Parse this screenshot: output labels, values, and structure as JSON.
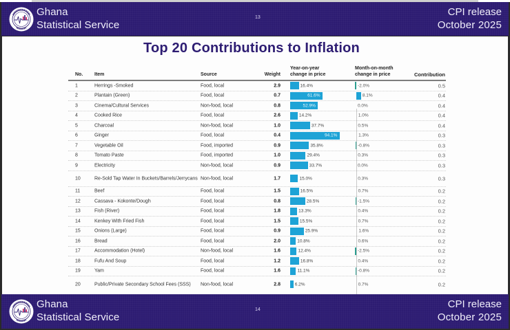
{
  "header": {
    "org_line1": "Ghana",
    "org_line2": "Statistical Service",
    "logo": "ghana-statistical-service-logo",
    "release_line1": "CPI release",
    "release_line2": "October  2025"
  },
  "top_page_number": "13",
  "bottom_page_number": "14",
  "page": {
    "title": "Top 20 Contributions to Inflation"
  },
  "colors": {
    "brand_purple": "#2d1c72",
    "yoy_bar": "#1ea3d6",
    "mom_positive": "#1ea3d6",
    "mom_negative": "#2a9d8f"
  },
  "table": {
    "columns": {
      "no": "No.",
      "item": "Item",
      "source": "Source",
      "weight": "Weight",
      "yoy_line1": "Year-on-year",
      "yoy_line2": "change in price",
      "mom_line1": "Month-on-month",
      "mom_line2": "change in price",
      "contribution": "Contribution"
    },
    "rows": [
      {
        "no": "1",
        "item": "Herrings -Smoked",
        "source": "Food, local",
        "weight": "2.9",
        "yoy": 16.4,
        "yoy_label": "16.4%",
        "mom": -2.0,
        "mom_label": "-2.0%",
        "contribution": "0.5"
      },
      {
        "no": "2",
        "item": "Plantain (Green)",
        "source": "Food, local",
        "weight": "0.7",
        "yoy": 61.6,
        "yoy_label": "61.6%",
        "mom": 8.1,
        "mom_label": "8.1%",
        "contribution": "0.4"
      },
      {
        "no": "3",
        "item": "Cinema/Cultural Services",
        "source": "Non-food, local",
        "weight": "0.8",
        "yoy": 52.9,
        "yoy_label": "52.9%",
        "mom": 0.0,
        "mom_label": "0.0%",
        "contribution": "0.4"
      },
      {
        "no": "4",
        "item": "Cooked Rice",
        "source": "Food, local",
        "weight": "2.6",
        "yoy": 14.2,
        "yoy_label": "14.2%",
        "mom": 1.0,
        "mom_label": "1.0%",
        "contribution": "0.4"
      },
      {
        "no": "5",
        "item": "Charcoal",
        "source": "Non-food, local",
        "weight": "1.0",
        "yoy": 37.7,
        "yoy_label": "37.7%",
        "mom": 0.5,
        "mom_label": "0.5%",
        "contribution": "0.4"
      },
      {
        "no": "6",
        "item": "Ginger",
        "source": "Food, local",
        "weight": "0.4",
        "yoy": 94.1,
        "yoy_label": "94.1%",
        "mom": 1.3,
        "mom_label": "1.3%",
        "contribution": "0.3"
      },
      {
        "no": "7",
        "item": "Vegetable Oil",
        "source": "Food, imported",
        "weight": "0.9",
        "yoy": 35.8,
        "yoy_label": "35.8%",
        "mom": -0.8,
        "mom_label": "-0.8%",
        "contribution": "0.3"
      },
      {
        "no": "8",
        "item": "Tomato Paste",
        "source": "Food, imported",
        "weight": "1.0",
        "yoy": 29.4,
        "yoy_label": "29.4%",
        "mom": 0.3,
        "mom_label": "0.3%",
        "contribution": "0.3"
      },
      {
        "no": "9",
        "item": "Electricity",
        "source": "Non-food, local",
        "weight": "0.9",
        "yoy": 33.7,
        "yoy_label": "33.7%",
        "mom": 0.0,
        "mom_label": "0.0%",
        "contribution": "0.3"
      },
      {
        "no": "10",
        "item": "Re-Sold Tap Water In Buckets/Barrels/Jerrycans",
        "source": "Non-food, local",
        "weight": "1.7",
        "yoy": 15.0,
        "yoy_label": "15.0%",
        "mom": 0.3,
        "mom_label": "0.3%",
        "contribution": "0.3",
        "tall": true
      },
      {
        "no": "11",
        "item": "Beef",
        "source": "Food, local",
        "weight": "1.5",
        "yoy": 16.5,
        "yoy_label": "16.5%",
        "mom": 0.7,
        "mom_label": "0.7%",
        "contribution": "0.2"
      },
      {
        "no": "12",
        "item": "Cassava - Kokonte/Dough",
        "source": "Food, local",
        "weight": "0.8",
        "yoy": 28.5,
        "yoy_label": "28.5%",
        "mom": -1.5,
        "mom_label": "-1.5%",
        "contribution": "0.2"
      },
      {
        "no": "13",
        "item": "Fish (River)",
        "source": "Food, local",
        "weight": "1.8",
        "yoy": 13.3,
        "yoy_label": "13.3%",
        "mom": 0.4,
        "mom_label": "0.4%",
        "contribution": "0.2"
      },
      {
        "no": "14",
        "item": "Kenkey With Fried Fish",
        "source": "Food, local",
        "weight": "1.5",
        "yoy": 15.5,
        "yoy_label": "15.5%",
        "mom": 0.7,
        "mom_label": "0.7%",
        "contribution": "0.2"
      },
      {
        "no": "15",
        "item": "Onions (Large)",
        "source": "Food, local",
        "weight": "0.9",
        "yoy": 25.9,
        "yoy_label": "25.9%",
        "mom": 1.6,
        "mom_label": "1.6%",
        "contribution": "0.2"
      },
      {
        "no": "16",
        "item": "Bread",
        "source": "Food, local",
        "weight": "2.0",
        "yoy": 10.8,
        "yoy_label": "10.8%",
        "mom": 0.6,
        "mom_label": "0.6%",
        "contribution": "0.2"
      },
      {
        "no": "17",
        "item": "Accommodation (Hotel)",
        "source": "Non-food, local",
        "weight": "1.6",
        "yoy": 12.4,
        "yoy_label": "12.4%",
        "mom": -2.5,
        "mom_label": "-2.5%",
        "contribution": "0.2"
      },
      {
        "no": "18",
        "item": "Fufu And Soup",
        "source": "Food, local",
        "weight": "1.2",
        "yoy": 16.8,
        "yoy_label": "16.8%",
        "mom": 0.4,
        "mom_label": "0.4%",
        "contribution": "0.2"
      },
      {
        "no": "19",
        "item": "Yam",
        "source": "Food, local",
        "weight": "1.6",
        "yoy": 11.1,
        "yoy_label": "11.1%",
        "mom": -0.8,
        "mom_label": "-0.8%",
        "contribution": "0.2"
      },
      {
        "no": "20",
        "item": "Public/Private Secondary School Fees (SSS)",
        "source": "Non-food, local",
        "weight": "2.8",
        "yoy": 6.2,
        "yoy_label": "6.2%",
        "mom": 0.7,
        "mom_label": "0.7%",
        "contribution": "0.2",
        "tall": true
      }
    ]
  }
}
